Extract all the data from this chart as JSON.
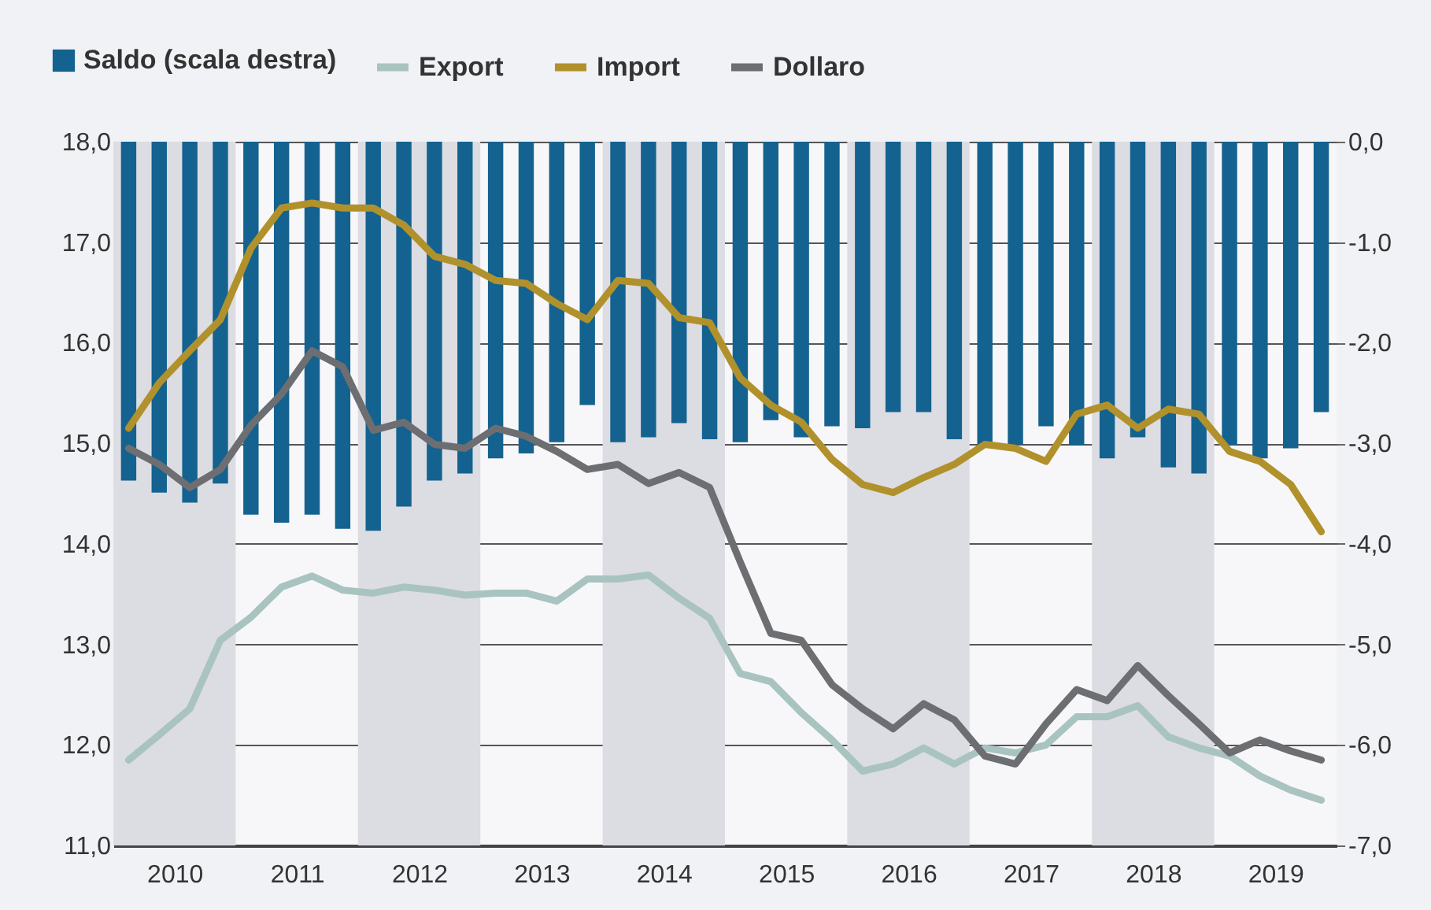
{
  "chart_data": {
    "type": "line",
    "x": [
      2010.125,
      2010.375,
      2010.625,
      2010.875,
      2011.125,
      2011.375,
      2011.625,
      2011.875,
      2012.125,
      2012.375,
      2012.625,
      2012.875,
      2013.125,
      2013.375,
      2013.625,
      2013.875,
      2014.125,
      2014.375,
      2014.625,
      2014.875,
      2015.125,
      2015.375,
      2015.625,
      2015.875,
      2016.125,
      2016.375,
      2016.625,
      2016.875,
      2017.125,
      2017.375,
      2017.625,
      2017.875,
      2018.125,
      2018.375,
      2018.625,
      2018.875,
      2019.125,
      2019.375,
      2019.625,
      2019.875
    ],
    "series": [
      {
        "name": "Saldo (scala destra)",
        "type": "bar",
        "axis": "y2",
        "color": "#14628f",
        "values": [
          -3.37,
          -3.49,
          -3.59,
          -3.4,
          -3.71,
          -3.79,
          -3.71,
          -3.85,
          -3.87,
          -3.63,
          -3.37,
          -3.3,
          -3.15,
          -3.1,
          -2.99,
          -2.62,
          -2.99,
          -2.94,
          -2.8,
          -2.96,
          -2.99,
          -2.77,
          -2.94,
          -2.83,
          -2.85,
          -2.69,
          -2.69,
          -2.96,
          -3.01,
          -3.01,
          -2.83,
          -3.02,
          -3.15,
          -2.94,
          -3.24,
          -3.3,
          -3.02,
          -3.15,
          -3.05,
          -2.69
        ]
      },
      {
        "name": "Export",
        "color": "#a9c4c0",
        "values": [
          11.85,
          12.1,
          12.36,
          13.04,
          13.27,
          13.57,
          13.68,
          13.54,
          13.51,
          13.57,
          13.54,
          13.49,
          13.51,
          13.51,
          13.43,
          13.65,
          13.65,
          13.69,
          13.46,
          13.26,
          12.71,
          12.63,
          12.32,
          12.05,
          11.74,
          11.81,
          11.97,
          11.81,
          11.97,
          11.92,
          12.0,
          12.28,
          12.28,
          12.39,
          12.08,
          11.97,
          11.89,
          11.69,
          11.55,
          11.45
        ]
      },
      {
        "name": "Import",
        "color": "#b0912c",
        "values": [
          15.15,
          15.6,
          15.92,
          16.23,
          16.94,
          17.34,
          17.39,
          17.34,
          17.34,
          17.17,
          16.86,
          16.78,
          16.62,
          16.59,
          16.39,
          16.23,
          16.62,
          16.59,
          16.25,
          16.2,
          15.65,
          15.38,
          15.21,
          14.84,
          14.59,
          14.51,
          14.66,
          14.79,
          14.99,
          14.95,
          14.82,
          15.29,
          15.38,
          15.15,
          15.34,
          15.29,
          14.92,
          14.82,
          14.59,
          14.12
        ]
      },
      {
        "name": "Dollaro",
        "color": "#6d6e72",
        "values": [
          14.95,
          14.79,
          14.56,
          14.74,
          15.18,
          15.49,
          15.92,
          15.76,
          15.13,
          15.21,
          14.99,
          14.95,
          15.15,
          15.07,
          14.92,
          14.74,
          14.79,
          14.6,
          14.71,
          14.56,
          13.82,
          13.11,
          13.04,
          12.6,
          12.36,
          12.16,
          12.41,
          12.25,
          11.89,
          11.81,
          12.21,
          12.55,
          12.44,
          12.79,
          12.49,
          12.21,
          11.92,
          12.05,
          11.94,
          11.85
        ]
      }
    ],
    "xlim": [
      2010,
      2020
    ],
    "xticks": [
      {
        "value": 2010.5,
        "label": "2010"
      },
      {
        "value": 2011.5,
        "label": "2011"
      },
      {
        "value": 2012.5,
        "label": "2012"
      },
      {
        "value": 2013.5,
        "label": "2013"
      },
      {
        "value": 2014.5,
        "label": "2014"
      },
      {
        "value": 2015.5,
        "label": "2015"
      },
      {
        "value": 2016.5,
        "label": "2016"
      },
      {
        "value": 2017.5,
        "label": "2017"
      },
      {
        "value": 2018.5,
        "label": "2018"
      },
      {
        "value": 2019.5,
        "label": "2019"
      }
    ],
    "ylim": [
      11,
      18
    ],
    "yticks": [
      {
        "value": 11,
        "label": "11,0"
      },
      {
        "value": 12,
        "label": "12,0"
      },
      {
        "value": 13,
        "label": "13,0"
      },
      {
        "value": 14,
        "label": "14,0"
      },
      {
        "value": 15,
        "label": "15,0"
      },
      {
        "value": 16,
        "label": "16,0"
      },
      {
        "value": 17,
        "label": "17,0"
      },
      {
        "value": 18,
        "label": "18,0"
      }
    ],
    "y2lim": [
      -7,
      0
    ],
    "y2ticks": [
      {
        "value": -7,
        "label": "-7,0"
      },
      {
        "value": -6,
        "label": "-6,0"
      },
      {
        "value": -5,
        "label": "-5,0"
      },
      {
        "value": -4,
        "label": "-4,0"
      },
      {
        "value": -3,
        "label": "-3,0"
      },
      {
        "value": -2,
        "label": "-2,0"
      },
      {
        "value": -1,
        "label": "-1,0"
      },
      {
        "value": 0,
        "label": "0,0"
      }
    ],
    "bands": [
      {
        "axis": "x",
        "from": 2010,
        "to": 2011,
        "color": "#dcdce3"
      },
      {
        "axis": "x",
        "from": 2012,
        "to": 2013,
        "color": "#dcdce3"
      },
      {
        "axis": "x",
        "from": 2014,
        "to": 2015,
        "color": "#dcdce3"
      },
      {
        "axis": "x",
        "from": 2016,
        "to": 2017,
        "color": "#dcdce3"
      },
      {
        "axis": "x",
        "from": 2018,
        "to": 2019,
        "color": "#dcdce3"
      }
    ],
    "grid": "y",
    "legend": "top left",
    "line_style": "solid",
    "marker": "none"
  }
}
